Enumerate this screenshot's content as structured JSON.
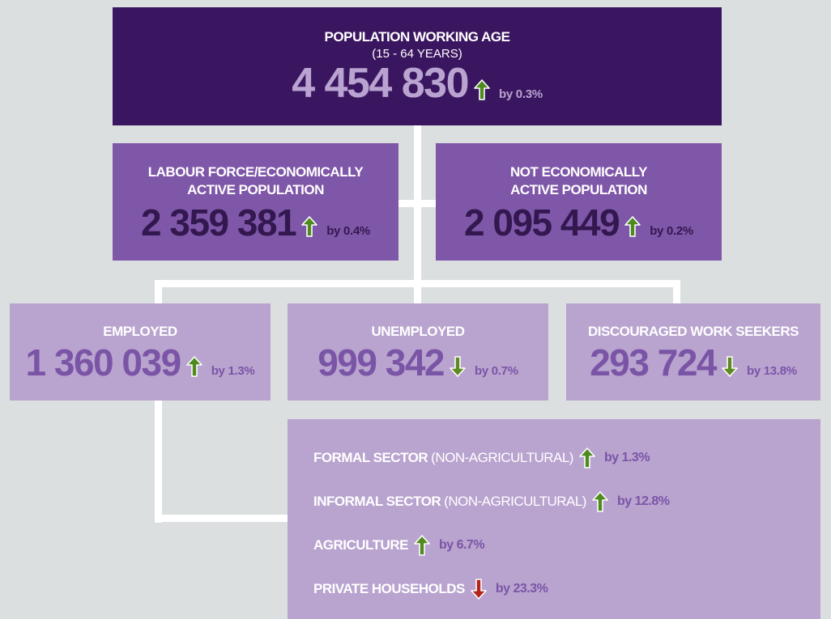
{
  "top": {
    "title": "POPULATION WORKING AGE",
    "subtitle": "(15 - 64 YEARS)",
    "value": "4 454 830",
    "trend": "up",
    "arrow_color": "#4f8a1e",
    "change": "by 0.3%"
  },
  "level2": [
    {
      "title_lines": [
        "LABOUR FORCE/ECONOMICALLY",
        "ACTIVE POPULATION"
      ],
      "value": "2 359 381",
      "trend": "up",
      "arrow_color": "#4f8a1e",
      "change": "by 0.4%"
    },
    {
      "title_lines": [
        "NOT ECONOMICALLY",
        "ACTIVE POPULATION"
      ],
      "value": "2 095 449",
      "trend": "up",
      "arrow_color": "#4f8a1e",
      "change": "by 0.2%"
    }
  ],
  "level3": [
    {
      "title": "EMPLOYED",
      "value": "1 360 039",
      "trend": "up",
      "arrow_color": "#4f8a1e",
      "change": "by 1.3%"
    },
    {
      "title": "UNEMPLOYED",
      "value": "999 342",
      "trend": "down",
      "arrow_color": "#5e8a22",
      "change": "by 0.7%"
    },
    {
      "title": "DISCOURAGED WORK SEEKERS",
      "value": "293 724",
      "trend": "down",
      "arrow_color": "#5e8a22",
      "change": "by 13.8%"
    }
  ],
  "sectors": [
    {
      "label": "FORMAL SECTOR",
      "note": "(NON-AGRICULTURAL)",
      "trend": "up",
      "arrow_color": "#4f8a1e",
      "change": "by 1.3%"
    },
    {
      "label": "INFORMAL SECTOR",
      "note": "(NON-AGRICULTURAL)",
      "trend": "up",
      "arrow_color": "#4f8a1e",
      "change": "by 12.8%"
    },
    {
      "label": "AGRICULTURE",
      "trend": "up",
      "arrow_color": "#4f8a1e",
      "change": "by 6.7%"
    },
    {
      "label": "PRIVATE HOUSEHOLDS",
      "trend": "down",
      "arrow_color": "#b2241c",
      "change": "by 23.3%"
    }
  ]
}
